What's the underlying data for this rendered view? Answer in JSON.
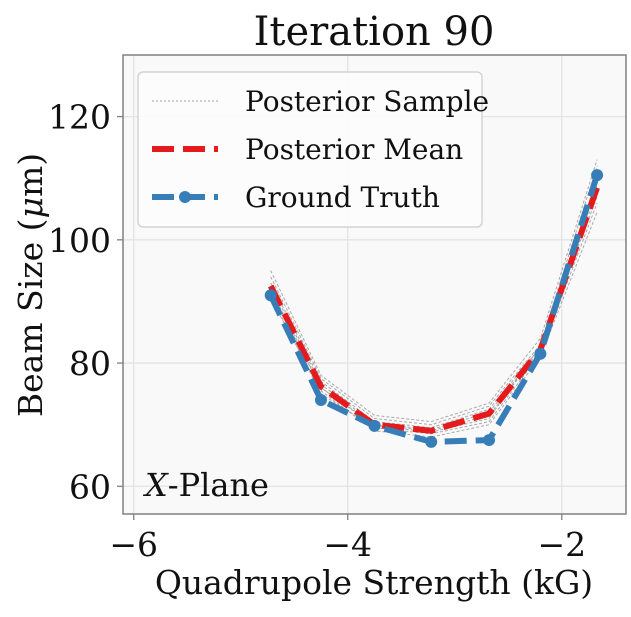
{
  "chart_data": {
    "type": "line",
    "title": "Iteration 90",
    "xlabel": "Quadrupole Strength (kG)",
    "ylabel_prefix": "Beam Size (",
    "ylabel_mu": "μ",
    "ylabel_suffix": "m)",
    "xlim": [
      -6.1,
      -1.4
    ],
    "ylim": [
      55.5,
      130
    ],
    "x_ticks": [
      -6,
      -4,
      -2
    ],
    "x_tick_labels": [
      "−6",
      "−4",
      "−2"
    ],
    "y_ticks": [
      60,
      80,
      100,
      120
    ],
    "y_tick_labels": [
      "60",
      "80",
      "100",
      "120"
    ],
    "grid": true,
    "legend_position": "top-left",
    "annotation_var": "X",
    "annotation_rest": "-Plane",
    "x": [
      -4.72,
      -4.25,
      -3.75,
      -3.22,
      -2.68,
      -2.2,
      -1.67
    ],
    "series": [
      {
        "name": "Posterior Sample",
        "style": "thin-gray",
        "color": "#a0a0a0",
        "samples": [
          [
            92.0,
            76.0,
            70.0,
            69.0,
            71.5,
            82.0,
            108.0
          ],
          [
            93.0,
            77.0,
            70.5,
            69.5,
            72.5,
            82.5,
            110.0
          ],
          [
            91.0,
            75.0,
            69.5,
            68.5,
            70.5,
            81.5,
            106.0
          ],
          [
            94.0,
            77.5,
            71.0,
            70.0,
            73.0,
            83.0,
            112.0
          ],
          [
            90.5,
            75.5,
            69.0,
            68.0,
            70.0,
            81.0,
            104.5
          ],
          [
            92.5,
            76.5,
            70.2,
            69.2,
            72.0,
            82.2,
            109.0
          ],
          [
            95.0,
            78.0,
            71.5,
            70.5,
            73.5,
            84.0,
            113.0
          ],
          [
            91.5,
            76.0,
            69.8,
            68.8,
            71.0,
            82.8,
            107.0
          ]
        ]
      },
      {
        "name": "Posterior Mean",
        "style": "dashed",
        "color": "#e41a1c",
        "values": [
          92.5,
          76.2,
          70.0,
          69.0,
          71.8,
          82.2,
          108.5
        ]
      },
      {
        "name": "Ground Truth",
        "style": "dashed-markers",
        "color": "#377eb8",
        "values": [
          91.0,
          74.0,
          69.8,
          67.2,
          67.5,
          81.5,
          110.5
        ]
      }
    ]
  }
}
